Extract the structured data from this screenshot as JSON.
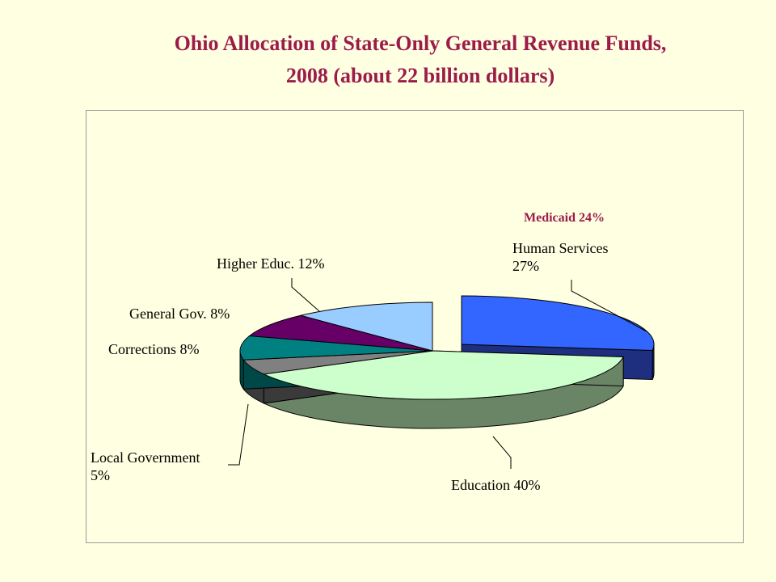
{
  "title": {
    "line1": "Ohio Allocation of  State-Only General Revenue Funds,",
    "line2": "2008 (about 22 billion dollars)"
  },
  "annotation": {
    "text": "Medicaid 24%",
    "color": "#9B1B4B"
  },
  "chart_data": {
    "type": "pie",
    "style": "3d-exploded",
    "title": "Ohio Allocation of  State-Only General Revenue Funds, 2008 (about 22 billion dollars)",
    "slices": [
      {
        "key": "human",
        "label_lines": [
          "Human Services",
          "27%"
        ],
        "value": 27,
        "color": "#3366FF",
        "side": "#1F2F80"
      },
      {
        "key": "education",
        "label_lines": [
          "Education 40%"
        ],
        "value": 40,
        "color": "#CCFFCC",
        "side": "#6A8466"
      },
      {
        "key": "local",
        "label_lines": [
          "Local Government",
          "5%"
        ],
        "value": 5,
        "color": "#808080",
        "side": "#3A3A3A"
      },
      {
        "key": "corrections",
        "label_lines": [
          "Corrections  8%"
        ],
        "value": 8,
        "color": "#008080",
        "side": "#004848"
      },
      {
        "key": "general",
        "label_lines": [
          "General Gov.  8%"
        ],
        "value": 8,
        "color": "#660066",
        "side": "#330033"
      },
      {
        "key": "higher",
        "label_lines": [
          "Higher Educ.  12%"
        ],
        "value": 12,
        "color": "#99CCFF",
        "side": "#5C7A99"
      }
    ],
    "legend": "none"
  }
}
